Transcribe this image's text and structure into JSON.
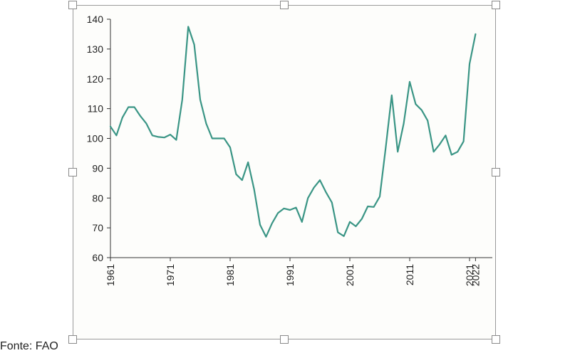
{
  "chart_data": {
    "type": "line",
    "title": "",
    "xlabel": "",
    "ylabel": "",
    "ylim": [
      60,
      140
    ],
    "xlim": [
      1961,
      2022
    ],
    "grid": false,
    "yticks": [
      "60",
      "70",
      "80",
      "90",
      "100",
      "110",
      "120",
      "130",
      "140"
    ],
    "xticks": [
      "1961",
      "1971",
      "1981",
      "1991",
      "2001",
      "2011",
      "2021",
      "2022"
    ],
    "series": [
      {
        "color": "#3a9585",
        "x": [
          1961,
          1962,
          1963,
          1964,
          1965,
          1966,
          1967,
          1968,
          1969,
          1970,
          1971,
          1972,
          1973,
          1974,
          1975,
          1976,
          1977,
          1978,
          1979,
          1980,
          1981,
          1982,
          1983,
          1984,
          1985,
          1986,
          1987,
          1988,
          1989,
          1990,
          1991,
          1992,
          1993,
          1994,
          1995,
          1996,
          1997,
          1998,
          1999,
          2000,
          2001,
          2002,
          2003,
          2004,
          2005,
          2006,
          2007,
          2008,
          2009,
          2010,
          2011,
          2012,
          2013,
          2014,
          2015,
          2016,
          2017,
          2018,
          2019,
          2020,
          2021,
          2022
        ],
        "y": [
          104,
          101,
          107,
          110.5,
          110.5,
          107.5,
          105,
          101,
          100.5,
          100.3,
          101.3,
          99.5,
          113,
          137.5,
          131.5,
          113,
          105,
          100,
          100,
          100,
          97,
          88,
          86,
          92,
          83,
          71,
          67,
          71.5,
          75,
          76.5,
          76,
          76.8,
          72,
          80,
          83.5,
          86,
          82,
          78.5,
          68.5,
          67.2,
          72,
          70.5,
          73,
          77.2,
          77,
          80.5,
          97,
          114.5,
          95.5,
          105,
          119,
          111.5,
          109.5,
          106,
          95.5,
          98,
          101,
          94.5,
          95.5,
          99,
          125,
          135
        ]
      }
    ]
  },
  "source_note": "Fonte: FAO"
}
